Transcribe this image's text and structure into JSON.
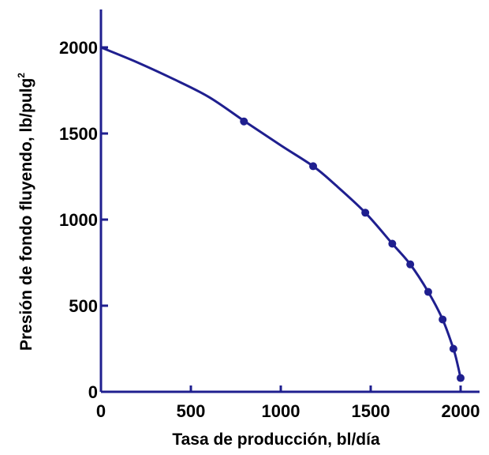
{
  "chart_data": {
    "type": "line",
    "xlabel": "Tasa de producción, bl/día",
    "ylabel_main": "Presión de fondo fluyendo, lb/pulg",
    "ylabel_sup": "2",
    "xlim": [
      0,
      2000
    ],
    "ylim": [
      0,
      2200
    ],
    "xticks": [
      0,
      500,
      1000,
      1500,
      2000
    ],
    "yticks": [
      0,
      500,
      1000,
      1500,
      2000
    ],
    "grid": false,
    "line_color": "#1f1f8f",
    "series": [
      {
        "curve": [
          [
            0,
            2000
          ],
          [
            200,
            1914
          ],
          [
            400,
            1818
          ],
          [
            600,
            1712
          ],
          [
            800,
            1570
          ],
          [
            1000,
            1431
          ],
          [
            1180,
            1310
          ],
          [
            1300,
            1205
          ],
          [
            1470,
            1040
          ],
          [
            1620,
            860
          ],
          [
            1720,
            740
          ],
          [
            1820,
            580
          ],
          [
            1900,
            420
          ],
          [
            1960,
            250
          ],
          [
            1985,
            150
          ],
          [
            2000,
            80
          ]
        ],
        "points": [
          [
            795,
            1570
          ],
          [
            1180,
            1310
          ],
          [
            1470,
            1040
          ],
          [
            1620,
            860
          ],
          [
            1720,
            740
          ],
          [
            1820,
            580
          ],
          [
            1900,
            420
          ],
          [
            1960,
            250
          ],
          [
            2000,
            80
          ]
        ]
      }
    ]
  }
}
